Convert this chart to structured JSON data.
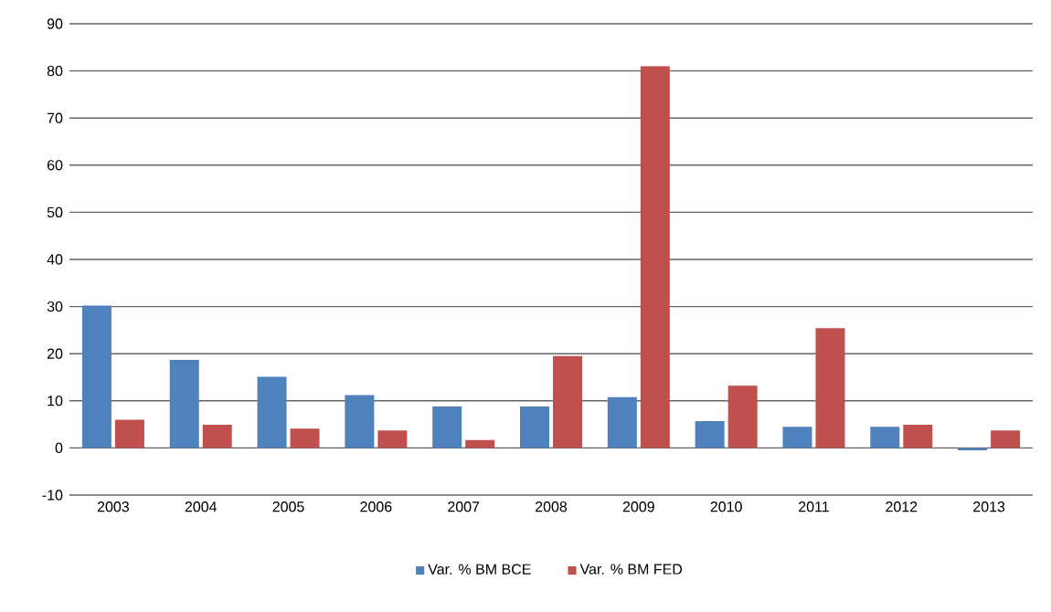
{
  "chart_data": {
    "type": "bar",
    "categories": [
      "2003",
      "2004",
      "2005",
      "2006",
      "2007",
      "2008",
      "2009",
      "2010",
      "2011",
      "2012",
      "2013"
    ],
    "series": [
      {
        "name": "Var. % BM BCE",
        "color": "#4f81bd",
        "values": [
          30.2,
          18.7,
          15.1,
          11.2,
          8.8,
          8.8,
          10.8,
          5.7,
          4.5,
          4.5,
          -0.5
        ]
      },
      {
        "name": "Var. % BM FED",
        "color": "#c0504d",
        "values": [
          6.0,
          4.9,
          4.1,
          3.7,
          1.7,
          19.5,
          81,
          13.2,
          25.4,
          4.9,
          3.7
        ]
      }
    ],
    "ylim": [
      -10,
      90
    ],
    "yticks": [
      -10,
      0,
      10,
      20,
      30,
      40,
      50,
      60,
      70,
      80,
      90
    ],
    "grid": "y",
    "legend": "bottom"
  }
}
